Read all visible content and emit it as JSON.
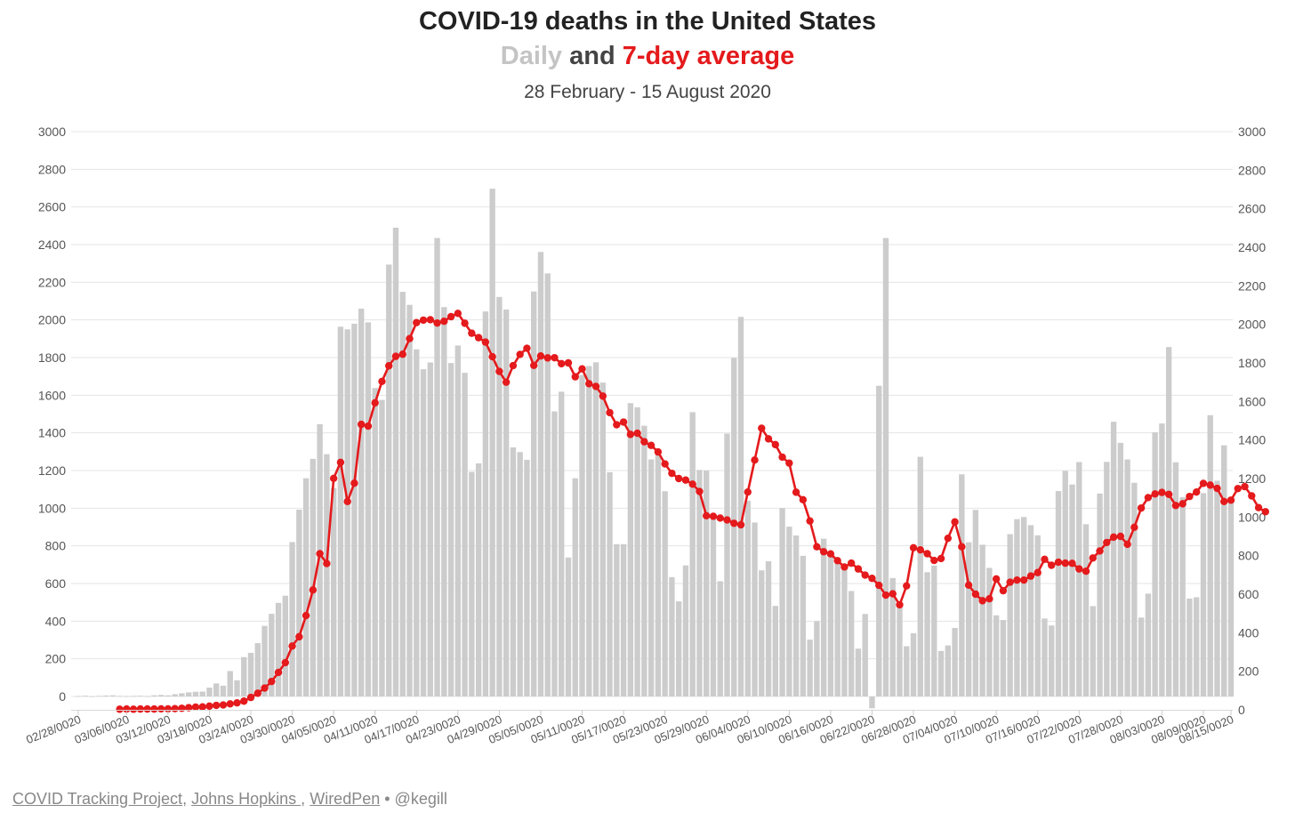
{
  "header": {
    "title": "COVID-19 deaths in the United States",
    "subtitle_daily": "Daily",
    "subtitle_and": "and",
    "subtitle_avg": "7-day average",
    "date_range": "28 February - 15 August 2020"
  },
  "source": {
    "link1": "COVID Tracking Project",
    "sep1": ",",
    "link2": "Johns Hopkins ",
    "sep2": ",",
    "link3": "WiredPen",
    "handle": "• @kegill"
  },
  "colors": {
    "bar": "#cccccc",
    "line": "#e41a1c",
    "grid": "#e4e4e4",
    "tick": "#555555"
  },
  "chart_data": {
    "type": "bar",
    "title": "COVID-19 deaths in the United States",
    "subtitle": "Daily and 7-day average",
    "ylim": [
      0,
      3000
    ],
    "yticks": [
      0,
      200,
      400,
      600,
      800,
      1000,
      1200,
      1400,
      1600,
      1800,
      2000,
      2200,
      2400,
      2600,
      2800,
      3000
    ],
    "grid": true,
    "x_start": "02/28/0020",
    "x_end": "08/15/0020",
    "x_tick_labels": [
      "02/28/0020",
      "03/06/0020",
      "03/12/0020",
      "03/18/0020",
      "03/24/0020",
      "03/30/0020",
      "04/05/0020",
      "04/11/0020",
      "04/17/0020",
      "04/23/0020",
      "04/29/0020",
      "05/05/0020",
      "05/11/0020",
      "05/17/0020",
      "05/23/0020",
      "05/29/0020",
      "06/04/0020",
      "06/10/0020",
      "06/16/0020",
      "06/22/0020",
      "06/28/0020",
      "07/04/0020",
      "07/10/0020",
      "07/16/0020",
      "07/22/0020",
      "07/28/0020",
      "08/03/0020",
      "08/09/0020",
      "08/15/0020"
    ],
    "series": [
      {
        "name": "Daily",
        "values": [
          2,
          4,
          1,
          3,
          5,
          6,
          3,
          2,
          3,
          4,
          2,
          6,
          8,
          6,
          12,
          17,
          22,
          25,
          26,
          47,
          69,
          57,
          135,
          86,
          209,
          232,
          283,
          375,
          439,
          497,
          535,
          820,
          992,
          1159,
          1262,
          1446,
          1287,
          1107,
          1964,
          1950,
          1980,
          2060,
          1987,
          1638,
          1575,
          2294,
          2490,
          2149,
          2080,
          1844,
          1738,
          1774,
          2435,
          2068,
          1771,
          1864,
          1719,
          1193,
          1238,
          2045,
          2697,
          2122,
          2055,
          1323,
          1298,
          1257,
          2151,
          2361,
          2247,
          1514,
          1619,
          738,
          1159,
          1708,
          1755,
          1775,
          1667,
          1191,
          809,
          809,
          1558,
          1536,
          1438,
          1259,
          1305,
          1090,
          634,
          505,
          696,
          1510,
          1203,
          1200,
          970,
          612,
          1396,
          1798,
          2016,
          1039,
          924,
          670,
          718,
          481,
          1001,
          902,
          855,
          747,
          302,
          400,
          838,
          760,
          732,
          679,
          560,
          254,
          438,
          -63,
          1650,
          2435,
          629,
          500,
          267,
          336,
          1273,
          660,
          695,
          242,
          271,
          364,
          1180,
          819,
          991,
          806,
          683,
          431,
          406,
          862,
          942,
          953,
          910,
          856,
          414,
          377,
          1091,
          1198,
          1126,
          1245,
          915,
          480,
          1078,
          1246,
          1459,
          1347,
          1259,
          1135,
          419,
          546,
          1403,
          1450,
          1856,
          1244,
          1058,
          520,
          527,
          1080,
          1494,
          1146,
          1334,
          1041
        ]
      },
      {
        "name": "7-day average",
        "values": [
          null,
          null,
          null,
          null,
          null,
          null,
          3,
          4,
          3,
          4,
          4,
          4,
          5,
          5,
          6,
          8,
          11,
          14,
          15,
          19,
          23,
          25,
          31,
          36,
          45,
          64,
          86,
          113,
          147,
          194,
          245,
          331,
          379,
          489,
          622,
          810,
          759,
          1201,
          1284,
          1081,
          1176,
          1481,
          1472,
          1593,
          1704,
          1785,
          1834,
          1845,
          1926,
          2009,
          2022,
          2024,
          2007,
          2016,
          2040,
          2057,
          2006,
          1954,
          1931,
          1908,
          1832,
          1756,
          1700,
          1786,
          1844,
          1876,
          1787,
          1836,
          1826,
          1827,
          1796,
          1800,
          1728,
          1769,
          1692,
          1678,
          1628,
          1542,
          1479,
          1493,
          1429,
          1435,
          1391,
          1372,
          1338,
          1276,
          1227,
          1200,
          1192,
          1171,
          1133,
          1007,
          1004,
          995,
          985,
          968,
          960,
          1130,
          1296,
          1461,
          1406,
          1376,
          1311,
          1280,
          1129,
          1090,
          980,
          846,
          820,
          809,
          774,
          741,
          761,
          731,
          699,
          682,
          646,
          595,
          602,
          545,
          643,
          841,
          830,
          810,
          775,
          785,
          890,
          975,
          846,
          647,
          600,
          566,
          576,
          679,
          618,
          662,
          673,
          673,
          694,
          712,
          781,
          750,
          766,
          761,
          760,
          731,
          719,
          788,
          824,
          868,
          896,
          900,
          859,
          947,
          1047,
          1101,
          1120,
          1128,
          1118,
          1060,
          1069,
          1107,
          1130,
          1175,
          1166,
          1149,
          1081,
          1088,
          1148,
          1158,
          1110,
          1049,
          1028
        ]
      }
    ]
  }
}
